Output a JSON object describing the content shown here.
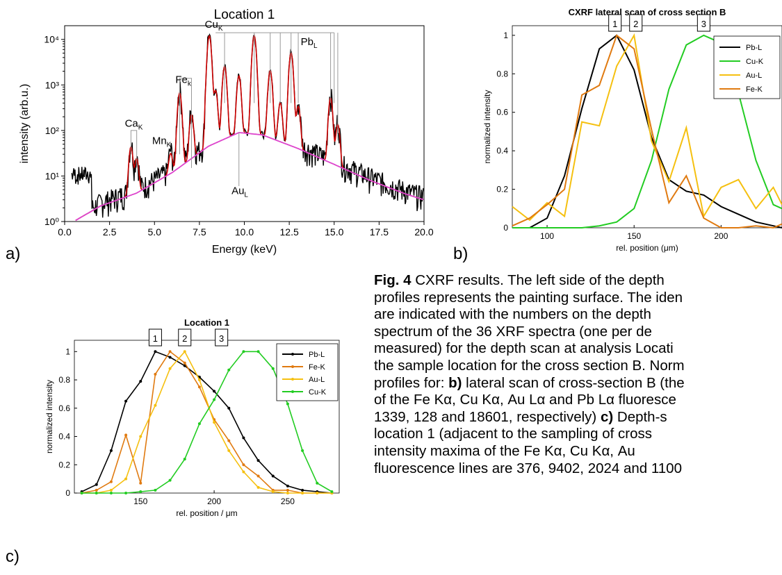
{
  "panel_labels": {
    "a": "a)",
    "b": "b)",
    "c": "c)"
  },
  "caption": {
    "fig_label": "Fig. 4",
    "lines": [
      " CXRF results. The left side of the depth",
      "profiles represents the painting surface. The iden",
      "are indicated with the numbers on the depth",
      "spectrum of the 36 XRF spectra (one per de",
      "measured) for the depth scan at analysis Locati",
      "the sample location for the cross section B. Norm",
      "profiles for: ",
      "of the Fe Kα, Cu Kα, Au Lα and Pb Lα fluoresce",
      "1339, 128 and 18601, respectively) ",
      "location 1 (adjacent to the sampling of cross",
      "intensity maxima of the Fe Kα, Cu Kα, Au",
      "fluorescence lines are 376, 9402, 2024 and 1100"
    ],
    "bold_b": "b)",
    "line7_rest": " lateral scan of cross-section B (the",
    "bold_c": "c)",
    "line9_rest": " Depth-s"
  },
  "chart_data": [
    {
      "type": "line",
      "title": "Location 1",
      "xlabel": "Energy (keV)",
      "ylabel": "intensity (arb.u.)",
      "xlim": [
        0,
        20
      ],
      "ylim": [
        1,
        20000
      ],
      "yscale": "log",
      "xticks": [
        "0.0",
        "2.5",
        "5.0",
        "7.5",
        "10.0",
        "12.5",
        "15.0",
        "17.5",
        "20.0"
      ],
      "yticks": [
        "10⁰",
        "10¹",
        "10²",
        "10³",
        "10⁴"
      ],
      "colors": {
        "measured": "#000000",
        "fit": "#cc0000",
        "background": "#dd44cc",
        "markers": "#999999"
      },
      "peaks": [
        {
          "x": 3.69,
          "y": 40
        },
        {
          "x": 4.01,
          "y": 20
        },
        {
          "x": 5.9,
          "y": 20
        },
        {
          "x": 6.4,
          "y": 650
        },
        {
          "x": 7.06,
          "y": 200
        },
        {
          "x": 8.05,
          "y": 12000
        },
        {
          "x": 8.4,
          "y": 700
        },
        {
          "x": 8.9,
          "y": 2500
        },
        {
          "x": 9.7,
          "y": 1500
        },
        {
          "x": 10.55,
          "y": 12000
        },
        {
          "x": 11.44,
          "y": 2000
        },
        {
          "x": 12.0,
          "y": 350
        },
        {
          "x": 12.6,
          "y": 5000
        },
        {
          "x": 13.0,
          "y": 300
        },
        {
          "x": 14.8,
          "y": 500
        },
        {
          "x": 15.2,
          "y": 120
        }
      ],
      "background_curve": {
        "x": [
          0.5,
          2,
          4,
          6,
          8,
          9.7,
          11,
          13,
          15,
          17,
          19,
          20
        ],
        "y": [
          1,
          2.2,
          4.2,
          12,
          45,
          90,
          80,
          40,
          18,
          8,
          4,
          3
        ]
      },
      "annotations": [
        {
          "text": "Ca",
          "sub": "K",
          "x": 3.85,
          "y": 120
        },
        {
          "text": "Mn",
          "sub": "K",
          "x": 5.4,
          "y": 50
        },
        {
          "text": "Fe",
          "sub": "k",
          "x": 6.6,
          "y": 1100
        },
        {
          "text": "Cu",
          "sub": "K",
          "x": 8.3,
          "y": 18000
        },
        {
          "text": "Pb",
          "sub": "L",
          "x": 13.6,
          "y": 7500
        },
        {
          "text": "Au",
          "sub": "L",
          "x": 9.75,
          "y": 4
        }
      ]
    },
    {
      "type": "line",
      "title": "CXRF lateral scan of cross section B",
      "xlabel": "rel. position (μm)",
      "ylabel": "normalized intensity",
      "xlim": [
        80,
        235
      ],
      "ylim": [
        0,
        1.05
      ],
      "xticks": [
        100,
        150,
        200
      ],
      "yticks": [
        0,
        0.2,
        0.4,
        0.6,
        0.8,
        1
      ],
      "peak_labels": [
        {
          "text": "1",
          "x": 139
        },
        {
          "text": "2",
          "x": 151
        },
        {
          "text": "3",
          "x": 190
        }
      ],
      "legend_position": "top-right",
      "x": [
        80,
        90,
        100,
        110,
        120,
        130,
        140,
        150,
        160,
        170,
        180,
        190,
        200,
        210,
        220,
        230,
        235
      ],
      "series": [
        {
          "name": "Pb-L",
          "color": "#000000",
          "values": [
            0,
            0,
            0.05,
            0.27,
            0.62,
            0.93,
            1.0,
            0.82,
            0.47,
            0.25,
            0.19,
            0.17,
            0.11,
            0.07,
            0.03,
            0.01,
            0.0
          ]
        },
        {
          "name": "Cu-K",
          "color": "#22cc22",
          "values": [
            0,
            0,
            0,
            0,
            0,
            0.01,
            0.03,
            0.1,
            0.35,
            0.72,
            0.95,
            1.0,
            0.96,
            0.7,
            0.35,
            0.12,
            0.1
          ]
        },
        {
          "name": "Au-L",
          "color": "#f5c010",
          "values": [
            0.11,
            0.04,
            0.13,
            0.06,
            0.55,
            0.53,
            0.84,
            1.0,
            0.45,
            0.24,
            0.52,
            0.06,
            0.21,
            0.25,
            0.1,
            0.21,
            0.12
          ]
        },
        {
          "name": "Fe-K",
          "color": "#e07a10",
          "values": [
            0.01,
            0.05,
            0.12,
            0.2,
            0.69,
            0.74,
            1.0,
            0.93,
            0.51,
            0.13,
            0.27,
            0.05,
            0.0,
            0.0,
            0.01,
            0.0,
            0.02
          ]
        }
      ]
    },
    {
      "type": "line",
      "title": "Location 1",
      "xlabel": "rel. position / μm",
      "ylabel": "normalized intensity",
      "xlim": [
        105,
        285
      ],
      "ylim": [
        0,
        1.08
      ],
      "xticks": [
        150,
        200,
        250
      ],
      "yticks": [
        0,
        0.2,
        0.4,
        0.6,
        0.8,
        1
      ],
      "peak_labels": [
        {
          "text": "1",
          "x": 160
        },
        {
          "text": "2",
          "x": 180
        },
        {
          "text": "3",
          "x": 205
        }
      ],
      "legend_position": "top-right",
      "x": [
        110,
        120,
        130,
        140,
        150,
        160,
        170,
        180,
        190,
        200,
        210,
        220,
        230,
        240,
        250,
        260,
        270,
        280
      ],
      "series": [
        {
          "name": "Pb-L",
          "color": "#000000",
          "values": [
            0.01,
            0.06,
            0.3,
            0.65,
            0.79,
            1.0,
            0.96,
            0.9,
            0.82,
            0.72,
            0.6,
            0.39,
            0.23,
            0.12,
            0.05,
            0.02,
            0.01,
            0.0
          ]
        },
        {
          "name": "Fe-K",
          "color": "#e07a10",
          "values": [
            0,
            0.02,
            0.08,
            0.41,
            0.07,
            0.84,
            1.0,
            0.92,
            0.75,
            0.52,
            0.37,
            0.2,
            0.12,
            0.02,
            0.02,
            0.0,
            0.0,
            0.0
          ]
        },
        {
          "name": "Au-L",
          "color": "#f5c010",
          "values": [
            0,
            0,
            0.02,
            0.1,
            0.4,
            0.62,
            0.88,
            1.0,
            0.8,
            0.5,
            0.3,
            0.15,
            0.04,
            0.01,
            0.0,
            0.0,
            0.0,
            0.0
          ]
        },
        {
          "name": "Cu-K",
          "color": "#22cc22",
          "values": [
            0,
            0,
            0,
            0,
            0.01,
            0.02,
            0.09,
            0.24,
            0.49,
            0.66,
            0.87,
            1.0,
            1.0,
            0.88,
            0.63,
            0.3,
            0.07,
            0.01
          ]
        }
      ]
    }
  ]
}
